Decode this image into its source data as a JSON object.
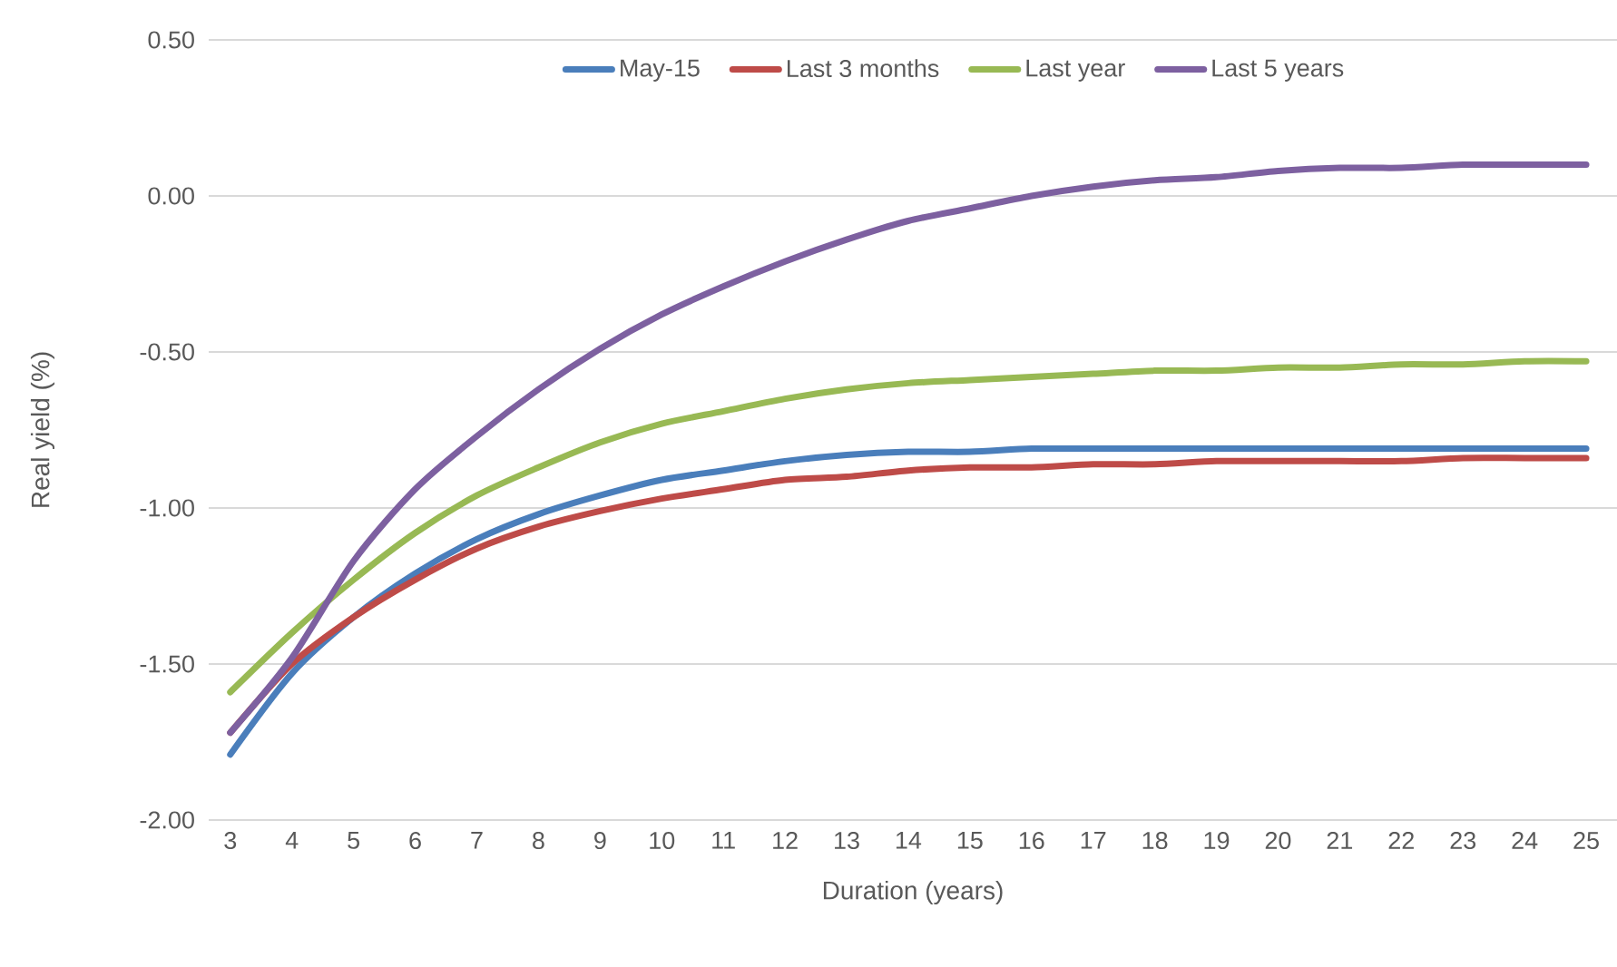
{
  "chart_data": {
    "type": "line",
    "xlabel": "Duration (years)",
    "ylabel": "Real yield (%)",
    "x": [
      3,
      4,
      5,
      6,
      7,
      8,
      9,
      10,
      11,
      12,
      13,
      14,
      15,
      16,
      17,
      18,
      19,
      20,
      21,
      22,
      23,
      24,
      25
    ],
    "xlim": [
      2.65,
      25.5
    ],
    "xticks": [
      3,
      4,
      5,
      6,
      7,
      8,
      9,
      10,
      11,
      12,
      13,
      14,
      15,
      16,
      17,
      18,
      19,
      20,
      21,
      22,
      23,
      24,
      25
    ],
    "ylim": [
      -2.0,
      0.5
    ],
    "yticks": [
      {
        "value": -2.0,
        "label": "-2.00"
      },
      {
        "value": -1.5,
        "label": "-1.50"
      },
      {
        "value": -1.0,
        "label": "-1.00"
      },
      {
        "value": -0.5,
        "label": "-0.50"
      },
      {
        "value": 0.0,
        "label": "0.00"
      },
      {
        "value": 0.5,
        "label": "0.50"
      }
    ],
    "grid": "y",
    "legend": "top",
    "marker": "none",
    "line_style": "solid",
    "series": [
      {
        "name": "May-15",
        "color": "#4a7ebb",
        "values": [
          -1.79,
          -1.53,
          -1.35,
          -1.21,
          -1.1,
          -1.02,
          -0.96,
          -0.91,
          -0.88,
          -0.85,
          -0.83,
          -0.82,
          -0.82,
          -0.81,
          -0.81,
          -0.81,
          -0.81,
          -0.81,
          -0.81,
          -0.81,
          -0.81,
          -0.81,
          -0.81
        ]
      },
      {
        "name": "Last 3 months",
        "color": "#be4b48",
        "values": [
          -1.72,
          -1.5,
          -1.35,
          -1.23,
          -1.13,
          -1.06,
          -1.01,
          -0.97,
          -0.94,
          -0.91,
          -0.9,
          -0.88,
          -0.87,
          -0.87,
          -0.86,
          -0.86,
          -0.85,
          -0.85,
          -0.85,
          -0.85,
          -0.84,
          -0.84,
          -0.84
        ]
      },
      {
        "name": "Last year",
        "color": "#98b954",
        "values": [
          -1.59,
          -1.4,
          -1.23,
          -1.08,
          -0.96,
          -0.87,
          -0.79,
          -0.73,
          -0.69,
          -0.65,
          -0.62,
          -0.6,
          -0.59,
          -0.58,
          -0.57,
          -0.56,
          -0.56,
          -0.55,
          -0.55,
          -0.54,
          -0.54,
          -0.53,
          -0.53
        ]
      },
      {
        "name": "Last 5 years",
        "color": "#7d60a0",
        "values": [
          -1.72,
          -1.48,
          -1.17,
          -0.94,
          -0.77,
          -0.62,
          -0.49,
          -0.38,
          -0.29,
          -0.21,
          -0.14,
          -0.08,
          -0.04,
          0.0,
          0.03,
          0.05,
          0.06,
          0.08,
          0.09,
          0.09,
          0.1,
          0.1,
          0.1
        ]
      }
    ]
  }
}
